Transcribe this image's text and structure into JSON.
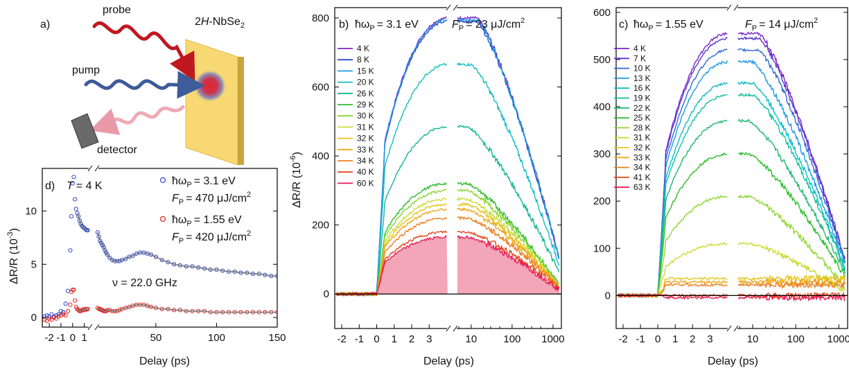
{
  "panel_a": {
    "label": "a)",
    "sample": "2H-NbSe",
    "sample_sub": "2",
    "probe": "probe",
    "pump": "pump",
    "detector": "detector"
  },
  "chart_data": [
    {
      "id": "b",
      "type": "line",
      "panel_label": "b)",
      "hw_label": "ħω",
      "hw_sub": "P",
      "hw_value": "= 3.1 eV",
      "fluence_label": "F",
      "fluence_sub": "P",
      "fluence_value": "= 23 μJ/cm",
      "fluence_sup": "2",
      "xlabel": "Delay (ps)",
      "ylabel": "ΔR/R (10",
      "ylabel_sup": "-6",
      "ylabel_tail": ")",
      "x_scale": "linear for -2.4 to 4.1 ps, then log from 4.1 to 1600 ps (broken axis)",
      "xticks_linear": [
        "-2",
        "-1",
        "0",
        "1",
        "2",
        "3"
      ],
      "xticks_log": [
        "10",
        "100",
        "1000"
      ],
      "ylim": [
        -100,
        830
      ],
      "yticks": [
        0,
        200,
        400,
        600,
        800
      ],
      "legend_position": "top-left",
      "series": [
        {
          "name": "4 K",
          "color": "#7a22c8",
          "peak": 800
        },
        {
          "name": "8 K",
          "color": "#2e47c4",
          "peak": 790
        },
        {
          "name": "15 K",
          "color": "#1b9be2",
          "peak": 795
        },
        {
          "name": "20 K",
          "color": "#13bcc4",
          "peak": 665
        },
        {
          "name": "26 K",
          "color": "#15b694",
          "peak": 485
        },
        {
          "name": "29 K",
          "color": "#2dbd2d",
          "peak": 320
        },
        {
          "name": "30 K",
          "color": "#8dd433",
          "peak": 300
        },
        {
          "name": "31 K",
          "color": "#c9dc3a",
          "peak": 275
        },
        {
          "name": "32 K",
          "color": "#e6c41d",
          "peak": 260
        },
        {
          "name": "33 K",
          "color": "#eda81d",
          "peak": 245
        },
        {
          "name": "34 K",
          "color": "#ec7f1d",
          "peak": 220
        },
        {
          "name": "40 K",
          "color": "#e4451e",
          "peak": 180
        },
        {
          "name": "60 K",
          "color": "#e41d55",
          "peak": 165
        }
      ],
      "fill_color": "#f3a6b8"
    },
    {
      "id": "c",
      "type": "line",
      "panel_label": "c)",
      "hw_label": "ħω",
      "hw_sub": "P",
      "hw_value": "= 1.55 eV",
      "fluence_label": "F",
      "fluence_sub": "P",
      "fluence_value": "= 14 μJ/cm",
      "fluence_sup": "2",
      "xlabel": "Delay (ps)",
      "x_scale": "linear for -2.4 to 4.1 ps, then log from 4.1 to 1600 ps (broken axis)",
      "xticks_linear": [
        "-2",
        "-1",
        "0",
        "1",
        "2",
        "3"
      ],
      "xticks_log": [
        "10",
        "100",
        "1000"
      ],
      "ylim": [
        -70,
        610
      ],
      "yticks": [
        0,
        100,
        200,
        300,
        400,
        500,
        600
      ],
      "legend_position": "top-left",
      "series": [
        {
          "name": "4 K",
          "color": "#7a22c8",
          "peak": 555
        },
        {
          "name": "7 K",
          "color": "#5a35cf",
          "peak": 545
        },
        {
          "name": "10 K",
          "color": "#2e6ad6",
          "peak": 520
        },
        {
          "name": "13 K",
          "color": "#1b9be2",
          "peak": 495
        },
        {
          "name": "16 K",
          "color": "#13bcc4",
          "peak": 450
        },
        {
          "name": "19 K",
          "color": "#14c0a2",
          "peak": 425
        },
        {
          "name": "22 K",
          "color": "#1db86d",
          "peak": 370
        },
        {
          "name": "25 K",
          "color": "#2dbd2d",
          "peak": 300
        },
        {
          "name": "28 K",
          "color": "#8dd433",
          "peak": 210
        },
        {
          "name": "31 K",
          "color": "#c9dc3a",
          "peak": 110
        },
        {
          "name": "32 K",
          "color": "#e6c41d",
          "peak": 40
        },
        {
          "name": "33 K",
          "color": "#eda81d",
          "peak": 32
        },
        {
          "name": "34 K",
          "color": "#ec7f1d",
          "peak": 25
        },
        {
          "name": "41 K",
          "color": "#e4451e",
          "peak": 0
        },
        {
          "name": "63 K",
          "color": "#e41d55",
          "peak": -5
        }
      ]
    },
    {
      "id": "d",
      "type": "scatter",
      "panel_label": "d)",
      "temp_label": "T",
      "temp_value": "= 4 K",
      "freq_label": "ν = 22.0 GHz",
      "xlabel": "Delay (ps)",
      "ylabel": "ΔR/R (10",
      "ylabel_sup": "-3",
      "ylabel_tail": ")",
      "x_scale": "linear -2.5 to 1.5 ps, broken, then linear 1.5 to 150 ps",
      "xticks_left": [
        "-2",
        "-1",
        "0",
        "1"
      ],
      "xticks_right": [
        "50",
        "100",
        "150"
      ],
      "ylim": [
        -0.9,
        14
      ],
      "yticks": [
        0,
        5,
        10
      ],
      "series": [
        {
          "name": "3.1 eV",
          "legend_hw": "ħω",
          "legend_sub": "P",
          "legend_value": "= 3.1 eV",
          "legend_f": "F",
          "legend_f_sub": "P",
          "legend_f_value": "= 470 μJ/cm",
          "legend_f_sup": "2",
          "color": "#2d46c9",
          "x_early": [
            -2.4,
            -2.2,
            -2.0,
            -1.8,
            -1.6,
            -1.4,
            -1.2,
            -1.0,
            -0.8,
            -0.6,
            -0.4,
            -0.2,
            -0.1,
            0.0,
            0.1,
            0.2,
            0.3,
            0.4,
            0.5,
            0.6,
            0.7,
            0.8,
            0.9,
            1.0,
            1.1,
            1.2,
            1.3
          ],
          "y_early": [
            0.1,
            0.2,
            0.1,
            0.3,
            0.1,
            0.2,
            0.3,
            0.6,
            0.5,
            1.3,
            2.5,
            6.3,
            9.5,
            12.6,
            13.2,
            11.1,
            10.2,
            9.8,
            9.5,
            9.1,
            8.8,
            8.6,
            8.5,
            8.4,
            8.3,
            8.2,
            8.2
          ],
          "x_late": [
            2,
            3,
            4,
            5,
            6,
            7,
            8,
            9,
            10,
            12,
            14,
            16,
            18,
            20,
            22,
            25,
            28,
            31,
            34,
            37,
            40,
            43,
            46,
            50,
            55,
            60,
            65,
            70,
            75,
            80,
            85,
            90,
            95,
            100,
            105,
            110,
            115,
            120,
            125,
            130,
            135,
            140,
            145,
            150
          ],
          "y_late": [
            8.0,
            7.6,
            7.2,
            7.0,
            6.8,
            6.6,
            6.3,
            6.1,
            5.9,
            5.6,
            5.4,
            5.3,
            5.3,
            5.3,
            5.4,
            5.5,
            5.7,
            5.8,
            6.0,
            6.1,
            6.1,
            6.0,
            5.9,
            5.7,
            5.4,
            5.2,
            5.0,
            4.9,
            4.8,
            4.8,
            4.7,
            4.6,
            4.5,
            4.5,
            4.4,
            4.3,
            4.3,
            4.2,
            4.2,
            4.1,
            4.1,
            4.0,
            3.9,
            3.9
          ]
        },
        {
          "name": "1.55 eV",
          "legend_hw": "ħω",
          "legend_sub": "P",
          "legend_value": "= 1.55 eV",
          "legend_f": "F",
          "legend_f_sub": "P",
          "legend_f_value": "= 420 μJ/cm",
          "legend_f_sup": "2",
          "color": "#e0241e",
          "x_early": [
            -2.4,
            -2.2,
            -2.0,
            -1.8,
            -1.6,
            -1.4,
            -1.2,
            -1.0,
            -0.8,
            -0.6,
            -0.4,
            -0.2,
            -0.1,
            0.0,
            0.1,
            0.2,
            0.3,
            0.4,
            0.5,
            0.6,
            0.7,
            0.8,
            0.9,
            1.0,
            1.1,
            1.2,
            1.3
          ],
          "y_early": [
            -0.2,
            -0.3,
            -0.1,
            -0.2,
            0.0,
            -0.1,
            0.1,
            0.2,
            0.3,
            0.2,
            0.6,
            1.2,
            2.4,
            2.6,
            2.6,
            1.6,
            1.0,
            0.8,
            0.7,
            0.6,
            0.6,
            0.7,
            0.7,
            0.8,
            0.7,
            0.8,
            0.8
          ],
          "x_late": [
            2,
            3,
            4,
            5,
            6,
            7,
            8,
            9,
            10,
            12,
            14,
            16,
            18,
            20,
            22,
            25,
            28,
            31,
            34,
            37,
            40,
            43,
            46,
            50,
            55,
            60,
            65,
            70,
            75,
            80,
            85,
            90,
            95,
            100,
            105,
            110,
            115,
            120,
            125,
            130,
            135,
            140,
            145,
            150
          ],
          "y_late": [
            0.9,
            0.8,
            0.8,
            0.7,
            0.7,
            0.6,
            0.6,
            0.6,
            0.7,
            0.7,
            0.6,
            0.6,
            0.6,
            0.7,
            0.8,
            0.9,
            1.0,
            1.1,
            1.2,
            1.2,
            1.2,
            1.1,
            1.0,
            0.9,
            0.8,
            0.8,
            0.7,
            0.7,
            0.6,
            0.6,
            0.6,
            0.6,
            0.5,
            0.5,
            0.5,
            0.5,
            0.5,
            0.5,
            0.5,
            0.5,
            0.5,
            0.5,
            0.5,
            0.5
          ]
        }
      ]
    }
  ]
}
